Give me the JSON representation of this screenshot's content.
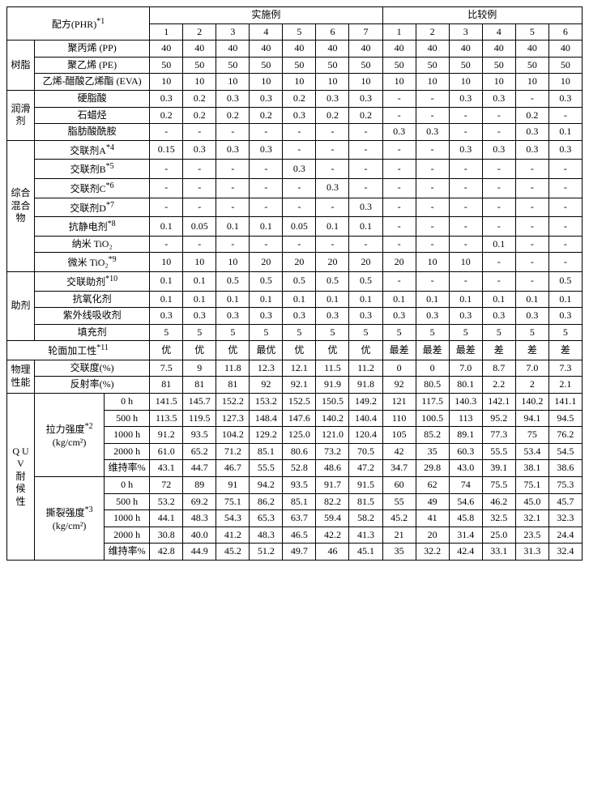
{
  "header": {
    "formula": "配方(PHR)",
    "formula_sup": "*1",
    "group_ex": "实施例",
    "group_cmp": "比较例",
    "ex_cols": [
      "1",
      "2",
      "3",
      "4",
      "5",
      "6",
      "7"
    ],
    "cmp_cols": [
      "1",
      "2",
      "3",
      "4",
      "5",
      "6"
    ]
  },
  "sections": {
    "resin": {
      "title": "树脂",
      "rows": [
        {
          "label": "聚丙烯  (PP)",
          "v": [
            "40",
            "40",
            "40",
            "40",
            "40",
            "40",
            "40",
            "40",
            "40",
            "40",
            "40",
            "40",
            "40"
          ]
        },
        {
          "label": "聚乙烯  (PE)",
          "v": [
            "50",
            "50",
            "50",
            "50",
            "50",
            "50",
            "50",
            "50",
            "50",
            "50",
            "50",
            "50",
            "50"
          ]
        },
        {
          "label": "乙烯-醋酸乙烯酯  (EVA)",
          "v": [
            "10",
            "10",
            "10",
            "10",
            "10",
            "10",
            "10",
            "10",
            "10",
            "10",
            "10",
            "10",
            "10"
          ]
        }
      ]
    },
    "lube": {
      "title": "润滑剂",
      "rows": [
        {
          "label": "硬脂酸",
          "v": [
            "0.3",
            "0.2",
            "0.3",
            "0.3",
            "0.2",
            "0.3",
            "0.3",
            "-",
            "-",
            "0.3",
            "0.3",
            "-",
            "0.3"
          ]
        },
        {
          "label": "石蜡烃",
          "v": [
            "0.2",
            "0.2",
            "0.2",
            "0.2",
            "0.3",
            "0.2",
            "0.2",
            "-",
            "-",
            "-",
            "-",
            "0.2",
            "-"
          ]
        },
        {
          "label": "脂肪酸酰胺",
          "v": [
            "-",
            "-",
            "-",
            "-",
            "-",
            "-",
            "-",
            "0.3",
            "0.3",
            "-",
            "-",
            "0.3",
            "0.1"
          ]
        }
      ]
    },
    "compound": {
      "title": "综合混合物",
      "rows": [
        {
          "label": "交联剂A",
          "sup": "*4",
          "v": [
            "0.15",
            "0.3",
            "0.3",
            "0.3",
            "-",
            "-",
            "-",
            "-",
            "-",
            "0.3",
            "0.3",
            "0.3",
            "0.3"
          ]
        },
        {
          "label": "交联剂B",
          "sup": "*5",
          "v": [
            "-",
            "-",
            "-",
            "-",
            "0.3",
            "-",
            "-",
            "-",
            "-",
            "-",
            "-",
            "-",
            "-"
          ]
        },
        {
          "label": "交联剂C",
          "sup": "*6",
          "v": [
            "-",
            "-",
            "-",
            "-",
            "-",
            "0.3",
            "-",
            "-",
            "-",
            "-",
            "-",
            "-",
            "-"
          ]
        },
        {
          "label": "交联剂D",
          "sup": "*7",
          "v": [
            "-",
            "-",
            "-",
            "-",
            "-",
            "-",
            "0.3",
            "-",
            "-",
            "-",
            "-",
            "-",
            "-"
          ]
        },
        {
          "label": "抗静电剂",
          "sup": "*8",
          "v": [
            "0.1",
            "0.05",
            "0.1",
            "0.1",
            "0.05",
            "0.1",
            "0.1",
            "-",
            "-",
            "-",
            "-",
            "-",
            "-"
          ]
        },
        {
          "label": "纳米 TiO₂",
          "v": [
            "-",
            "-",
            "-",
            "-",
            "-",
            "-",
            "-",
            "-",
            "-",
            "-",
            "0.1",
            "-",
            "-"
          ]
        },
        {
          "label": "微米 TiO₂",
          "sup": "*9",
          "v": [
            "10",
            "10",
            "10",
            "20",
            "20",
            "20",
            "20",
            "20",
            "10",
            "10",
            "-",
            "-",
            "-"
          ]
        }
      ]
    },
    "aux": {
      "title": "助剂",
      "rows": [
        {
          "label": "交联助剂",
          "sup": "*10",
          "v": [
            "0.1",
            "0.1",
            "0.5",
            "0.5",
            "0.5",
            "0.5",
            "0.5",
            "-",
            "-",
            "-",
            "-",
            "-",
            "0.5"
          ]
        },
        {
          "label": "抗氧化剂",
          "v": [
            "0.1",
            "0.1",
            "0.1",
            "0.1",
            "0.1",
            "0.1",
            "0.1",
            "0.1",
            "0.1",
            "0.1",
            "0.1",
            "0.1",
            "0.1"
          ]
        },
        {
          "label": "紫外线吸收剂",
          "v": [
            "0.3",
            "0.3",
            "0.3",
            "0.3",
            "0.3",
            "0.3",
            "0.3",
            "0.3",
            "0.3",
            "0.3",
            "0.3",
            "0.3",
            "0.3"
          ]
        },
        {
          "label": "填充剂",
          "v": [
            "5",
            "5",
            "5",
            "5",
            "5",
            "5",
            "5",
            "5",
            "5",
            "5",
            "5",
            "5",
            "5"
          ]
        }
      ]
    }
  },
  "workability": {
    "label": "轮面加工性",
    "sup": "*11",
    "v": [
      "优",
      "优",
      "优",
      "最优",
      "优",
      "优",
      "优",
      "最差",
      "最差",
      "最差",
      "差",
      "差",
      "差"
    ]
  },
  "phys": {
    "title": "物理性能",
    "rows": [
      {
        "label": "交联度(%)",
        "v": [
          "7.5",
          "9",
          "11.8",
          "12.3",
          "12.1",
          "11.5",
          "11.2",
          "0",
          "0",
          "7.0",
          "8.7",
          "7.0",
          "7.3"
        ]
      },
      {
        "label": "反射率(%)",
        "v": [
          "81",
          "81",
          "81",
          "92",
          "92.1",
          "91.9",
          "91.8",
          "92",
          "80.5",
          "80.1",
          "2.2",
          "2",
          "2.1"
        ]
      }
    ]
  },
  "quv": {
    "title": "QUV 耐候性",
    "tensile": {
      "label": "拉力强度",
      "sup": "*2",
      "unit": "(kg/cm²)",
      "rows": [
        {
          "h": "0 h",
          "v": [
            "141.5",
            "145.7",
            "152.2",
            "153.2",
            "152.5",
            "150.5",
            "149.2",
            "121",
            "117.5",
            "140.3",
            "142.1",
            "140.2",
            "141.1"
          ]
        },
        {
          "h": "500 h",
          "v": [
            "113.5",
            "119.5",
            "127.3",
            "148.4",
            "147.6",
            "140.2",
            "140.4",
            "110",
            "100.5",
            "113",
            "95.2",
            "94.1",
            "94.5"
          ]
        },
        {
          "h": "1000 h",
          "v": [
            "91.2",
            "93.5",
            "104.2",
            "129.2",
            "125.0",
            "121.0",
            "120.4",
            "105",
            "85.2",
            "89.1",
            "77.3",
            "75",
            "76.2"
          ]
        },
        {
          "h": "2000 h",
          "v": [
            "61.0",
            "65.2",
            "71.2",
            "85.1",
            "80.6",
            "73.2",
            "70.5",
            "42",
            "35",
            "60.3",
            "55.5",
            "53.4",
            "54.5"
          ]
        },
        {
          "h": "维持率%",
          "v": [
            "43.1",
            "44.7",
            "46.7",
            "55.5",
            "52.8",
            "48.6",
            "47.2",
            "34.7",
            "29.8",
            "43.0",
            "39.1",
            "38.1",
            "38.6"
          ]
        }
      ]
    },
    "tear": {
      "label": "撕裂强度",
      "sup": "*3",
      "unit": "(kg/cm²)",
      "rows": [
        {
          "h": "0 h",
          "v": [
            "72",
            "89",
            "91",
            "94.2",
            "93.5",
            "91.7",
            "91.5",
            "60",
            "62",
            "74",
            "75.5",
            "75.1",
            "75.3"
          ]
        },
        {
          "h": "500 h",
          "v": [
            "53.2",
            "69.2",
            "75.1",
            "86.2",
            "85.1",
            "82.2",
            "81.5",
            "55",
            "49",
            "54.6",
            "46.2",
            "45.0",
            "45.7"
          ]
        },
        {
          "h": "1000 h",
          "v": [
            "44.1",
            "48.3",
            "54.3",
            "65.3",
            "63.7",
            "59.4",
            "58.2",
            "45.2",
            "41",
            "45.8",
            "32.5",
            "32.1",
            "32.3"
          ]
        },
        {
          "h": "2000 h",
          "v": [
            "30.8",
            "40.0",
            "41.2",
            "48.3",
            "46.5",
            "42.2",
            "41.3",
            "21",
            "20",
            "31.4",
            "25.0",
            "23.5",
            "24.4"
          ]
        },
        {
          "h": "维持率%",
          "v": [
            "42.8",
            "44.9",
            "45.2",
            "51.2",
            "49.7",
            "46",
            "45.1",
            "35",
            "32.2",
            "42.4",
            "33.1",
            "31.3",
            "32.4"
          ]
        }
      ]
    }
  }
}
